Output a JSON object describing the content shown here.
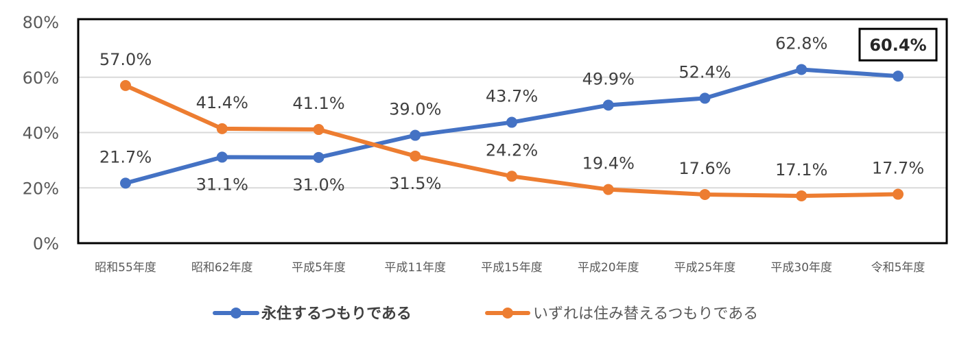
{
  "chart_data": {
    "type": "line",
    "title": "",
    "xlabel": "",
    "ylabel": "",
    "ylim": [
      0,
      80
    ],
    "yticks": [
      "0%",
      "20%",
      "40%",
      "60%",
      "80%"
    ],
    "grid": true,
    "legend_placement": "bottom",
    "categories": [
      "昭和55年度",
      "昭和62年度",
      "平成5年度",
      "平成11年度",
      "平成15年度",
      "平成20年度",
      "平成25年度",
      "平成30年度",
      "令和5年度"
    ],
    "series": [
      {
        "name": "永住するつもりである",
        "color": "#4472C4",
        "values": [
          21.7,
          31.1,
          31.0,
          39.0,
          43.7,
          49.9,
          52.4,
          62.8,
          60.4
        ],
        "labels": [
          "21.7%",
          "31.1%",
          "31.0%",
          "39.0%",
          "43.7%",
          "49.9%",
          "52.4%",
          "62.8%",
          "60.4%"
        ],
        "label_positions": [
          "above",
          "below",
          "below",
          "above",
          "above",
          "above",
          "above",
          "above",
          "boxed"
        ]
      },
      {
        "name": "いずれは住み替えるつもりである",
        "color": "#ED7D31",
        "values": [
          57.0,
          41.4,
          41.1,
          31.5,
          24.2,
          19.4,
          17.6,
          17.1,
          17.7
        ],
        "labels": [
          "57.0%",
          "41.4%",
          "41.1%",
          "31.5%",
          "24.2%",
          "19.4%",
          "17.6%",
          "17.1%",
          "17.7%"
        ],
        "label_positions": [
          "above",
          "above",
          "above",
          "below",
          "above",
          "above",
          "above",
          "above",
          "above"
        ]
      }
    ]
  }
}
